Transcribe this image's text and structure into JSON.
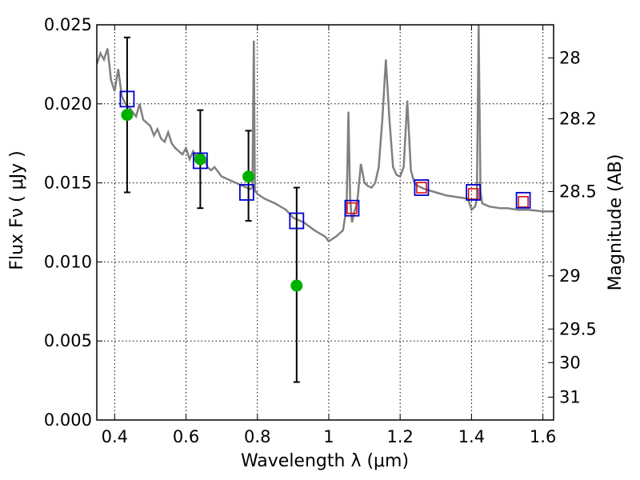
{
  "chart_data": {
    "type": "scatter",
    "xlabel": "Wavelength  λ (μm)",
    "ylabel": "Flux  Fν  ( μJy )",
    "y2label": "Magnitude (AB)",
    "xlim": [
      0.35,
      1.63
    ],
    "ylim": [
      0.0,
      0.025
    ],
    "grid": true,
    "x_ticks": [
      {
        "value": 0.4,
        "label": "0.4"
      },
      {
        "value": 0.6,
        "label": "0.6"
      },
      {
        "value": 0.8,
        "label": "0.8"
      },
      {
        "value": 1.0,
        "label": "1"
      },
      {
        "value": 1.2,
        "label": "1.2"
      },
      {
        "value": 1.4,
        "label": "1.4"
      },
      {
        "value": 1.6,
        "label": "1.6"
      }
    ],
    "y_ticks": [
      {
        "value": 0.0,
        "label": "0.000"
      },
      {
        "value": 0.005,
        "label": "0.005"
      },
      {
        "value": 0.01,
        "label": "0.010"
      },
      {
        "value": 0.015,
        "label": "0.015"
      },
      {
        "value": 0.02,
        "label": "0.020"
      },
      {
        "value": 0.025,
        "label": "0.025"
      }
    ],
    "right_ticks": [
      {
        "mag": 28,
        "label": "28"
      },
      {
        "mag": 28.2,
        "label": "28.2"
      },
      {
        "mag": 28.5,
        "label": "28.5"
      },
      {
        "mag": 29,
        "label": "29"
      },
      {
        "mag": 29.5,
        "label": "29.5"
      },
      {
        "mag": 30,
        "label": "30"
      },
      {
        "mag": 31,
        "label": "31"
      }
    ],
    "series": [
      {
        "kind": "sed_model_line",
        "color": "#808080",
        "x": [
          0.35,
          0.36,
          0.37,
          0.38,
          0.39,
          0.4,
          0.41,
          0.42,
          0.43,
          0.44,
          0.45,
          0.46,
          0.47,
          0.48,
          0.49,
          0.5,
          0.51,
          0.52,
          0.53,
          0.54,
          0.55,
          0.56,
          0.57,
          0.58,
          0.59,
          0.6,
          0.61,
          0.62,
          0.63,
          0.64,
          0.65,
          0.66,
          0.67,
          0.68,
          0.7,
          0.72,
          0.74,
          0.76,
          0.78,
          0.786,
          0.79,
          0.793,
          0.797,
          0.8,
          0.82,
          0.85,
          0.88,
          0.9,
          0.93,
          0.96,
          0.99,
          1.0,
          1.02,
          1.04,
          1.05,
          1.055,
          1.06,
          1.065,
          1.07,
          1.08,
          1.09,
          1.1,
          1.11,
          1.12,
          1.13,
          1.14,
          1.15,
          1.16,
          1.17,
          1.18,
          1.19,
          1.2,
          1.21,
          1.22,
          1.23,
          1.24,
          1.25,
          1.27,
          1.3,
          1.33,
          1.36,
          1.39,
          1.4,
          1.41,
          1.415,
          1.42,
          1.425,
          1.43,
          1.45,
          1.48,
          1.5,
          1.53,
          1.56,
          1.6,
          1.63
        ],
        "y": [
          0.0225,
          0.0232,
          0.0228,
          0.0235,
          0.0215,
          0.0208,
          0.0222,
          0.0205,
          0.02,
          0.0198,
          0.0195,
          0.0192,
          0.02,
          0.019,
          0.0188,
          0.0186,
          0.018,
          0.0184,
          0.0178,
          0.0176,
          0.0182,
          0.0175,
          0.0172,
          0.017,
          0.0168,
          0.0172,
          0.0165,
          0.017,
          0.0166,
          0.0162,
          0.0166,
          0.016,
          0.0158,
          0.016,
          0.0154,
          0.0152,
          0.015,
          0.0148,
          0.0146,
          0.0147,
          0.024,
          0.0145,
          0.0144,
          0.0143,
          0.014,
          0.0137,
          0.0133,
          0.0128,
          0.0125,
          0.012,
          0.0116,
          0.0113,
          0.0116,
          0.012,
          0.0135,
          0.0195,
          0.014,
          0.0125,
          0.013,
          0.0138,
          0.0162,
          0.015,
          0.0148,
          0.0147,
          0.015,
          0.016,
          0.019,
          0.0228,
          0.019,
          0.016,
          0.0155,
          0.0154,
          0.016,
          0.0202,
          0.0158,
          0.015,
          0.0148,
          0.0146,
          0.0144,
          0.0142,
          0.0141,
          0.014,
          0.0133,
          0.0135,
          0.014,
          0.025,
          0.0145,
          0.0137,
          0.0135,
          0.0134,
          0.0134,
          0.0133,
          0.0133,
          0.0132,
          0.0132
        ]
      },
      {
        "kind": "observed_flux_with_errors",
        "color": "#00b000",
        "x": [
          0.435,
          0.64,
          0.775,
          0.91
        ],
        "y": [
          0.0193,
          0.0165,
          0.0154,
          0.0085
        ],
        "err_low": [
          0.0144,
          0.0134,
          0.0126,
          0.0024
        ],
        "err_high": [
          0.0242,
          0.0196,
          0.0183,
          0.0147
        ]
      },
      {
        "kind": "model_band_flux_open_square",
        "color": "#0000cc",
        "x": [
          0.435,
          0.64,
          0.77,
          0.91,
          1.065,
          1.26,
          1.405,
          1.545
        ],
        "y": [
          0.0203,
          0.0164,
          0.0144,
          0.0126,
          0.0134,
          0.0147,
          0.0144,
          0.0139
        ]
      },
      {
        "kind": "observed_upper_open_square",
        "color": "#dd0000",
        "x": [
          1.065,
          1.26,
          1.405,
          1.545
        ],
        "y": [
          0.0134,
          0.0147,
          0.0143,
          0.0138
        ]
      }
    ]
  }
}
